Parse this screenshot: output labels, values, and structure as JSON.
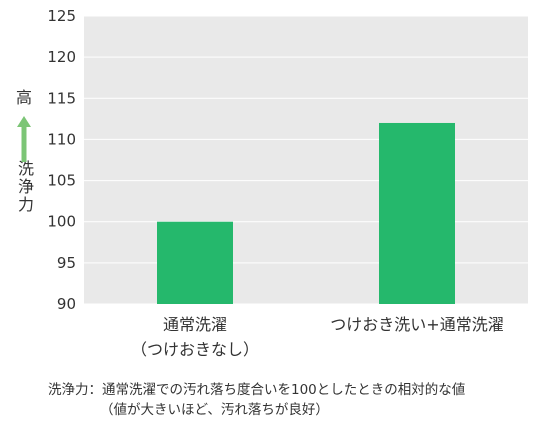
{
  "chart_data": {
    "type": "bar",
    "categories": [
      "通常洗濯\n（つけおきなし）",
      "つけおき洗い+通常洗濯"
    ],
    "values": [
      100,
      112
    ],
    "ylim": [
      90,
      125
    ],
    "yticks": [
      90,
      95,
      100,
      105,
      110,
      115,
      120,
      125
    ],
    "grid": true,
    "bar_color": "#25b86c",
    "plot_bg": "#e9e9e9",
    "ylabel_top": "高",
    "ylabel": "洗浄力",
    "arrow_color": "#7cc576"
  },
  "note": {
    "line1": "洗浄力：通常洗濯での汚れ落ち度合いを100としたときの相対的な値",
    "line2": "（値が大きいほど、汚れ落ちが良好）"
  }
}
